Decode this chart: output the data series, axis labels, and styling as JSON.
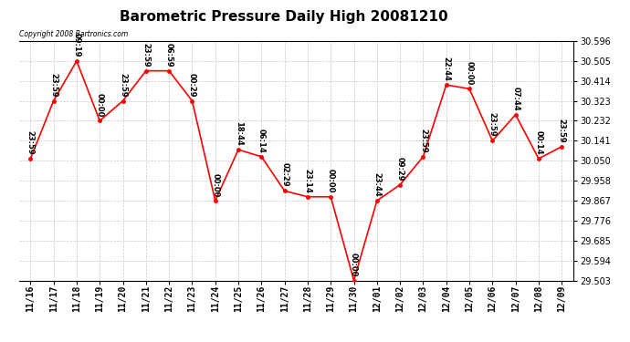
{
  "title": "Barometric Pressure Daily High 20081210",
  "copyright": "Copyright 2008 Bartronics.com",
  "x_labels": [
    "11/16",
    "11/17",
    "11/18",
    "11/19",
    "11/20",
    "11/21",
    "11/22",
    "11/23",
    "11/24",
    "11/25",
    "11/26",
    "11/27",
    "11/28",
    "11/29",
    "11/30",
    "12/01",
    "12/02",
    "12/03",
    "12/04",
    "12/05",
    "12/06",
    "12/07",
    "12/08",
    "12/09"
  ],
  "y_values": [
    30.059,
    30.323,
    30.505,
    30.232,
    30.323,
    30.46,
    30.46,
    30.323,
    29.867,
    30.1,
    30.068,
    29.912,
    29.885,
    29.885,
    29.503,
    29.867,
    29.94,
    30.068,
    30.396,
    30.378,
    30.141,
    30.26,
    30.059,
    30.114
  ],
  "point_labels": [
    "23:59",
    "23:59",
    "09:19",
    "00:00",
    "23:59",
    "23:59",
    "06:59",
    "00:29",
    "00:00",
    "18:44",
    "06:14",
    "02:29",
    "23:14",
    "00:00",
    "00:00",
    "23:44",
    "09:29",
    "23:59",
    "22:44",
    "00:00",
    "23:59",
    "07:44",
    "00:14",
    "23:59"
  ],
  "ylim": [
    29.503,
    30.596
  ],
  "yticks": [
    29.503,
    29.594,
    29.685,
    29.776,
    29.867,
    29.958,
    30.05,
    30.141,
    30.232,
    30.323,
    30.414,
    30.505,
    30.596
  ],
  "line_color": "red",
  "marker_color": "red",
  "bg_color": "white",
  "grid_color": "#bbbbbb",
  "title_fontsize": 11,
  "tick_fontsize": 7,
  "point_label_fontsize": 6
}
